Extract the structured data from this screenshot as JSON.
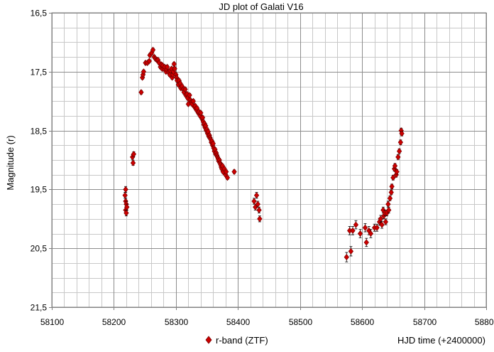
{
  "chart_data": {
    "type": "scatter",
    "title": "JD plot of Galati V16",
    "xlabel": "HJD time (+2400000)",
    "ylabel": "Magnitude (r)",
    "xlim": [
      58100,
      58800
    ],
    "ylim": [
      16.5,
      21.5
    ],
    "y_inverted": true,
    "x_major_ticks": [
      58100,
      58200,
      58300,
      58400,
      58500,
      58600,
      58700,
      58800
    ],
    "x_tick_labels": [
      "58100",
      "58200",
      "58300",
      "58400",
      "58500",
      "58600",
      "58700",
      "58800"
    ],
    "y_major_ticks": [
      16.5,
      17.5,
      18.5,
      19.5,
      20.5,
      21.5
    ],
    "y_tick_labels": [
      "16,5",
      "17,5",
      "18,5",
      "19,5",
      "20,5",
      "21,5"
    ],
    "x_minor_step": 20,
    "y_minor_step": 0.25,
    "grid": true,
    "legend_position": "bottom-center",
    "marker_color": "#cc0000",
    "marker_edge_color": "#7a0000",
    "series": [
      {
        "name": "r-band (ZTF)",
        "marker": "diamond",
        "points": [
          [
            58218,
            19.6,
            0.05
          ],
          [
            58219,
            19.5,
            0.05
          ],
          [
            58219,
            19.7,
            0.05
          ],
          [
            58220,
            19.75,
            0.05
          ],
          [
            58219,
            19.85,
            0.05
          ],
          [
            58220,
            19.9,
            0.05
          ],
          [
            58221,
            19.8,
            0.05
          ],
          [
            58230,
            18.95,
            0.04
          ],
          [
            58231,
            19.05,
            0.04
          ],
          [
            58232,
            18.9,
            0.04
          ],
          [
            58244,
            17.85,
            0.03
          ],
          [
            58246,
            17.6,
            0.03
          ],
          [
            58247,
            17.55,
            0.03
          ],
          [
            58248,
            17.5,
            0.03
          ],
          [
            58251,
            17.35,
            0.03
          ],
          [
            58254,
            17.35,
            0.03
          ],
          [
            58257,
            17.32,
            0.03
          ],
          [
            58258,
            17.22,
            0.03
          ],
          [
            58261,
            17.18,
            0.03
          ],
          [
            58263,
            17.13,
            0.03
          ],
          [
            58265,
            17.25,
            0.03
          ],
          [
            58267,
            17.28,
            0.03
          ],
          [
            58269,
            17.3,
            0.03
          ],
          [
            58271,
            17.3,
            0.03
          ],
          [
            58273,
            17.35,
            0.03
          ],
          [
            58275,
            17.42,
            0.03
          ],
          [
            58277,
            17.38,
            0.03
          ],
          [
            58278,
            17.45,
            0.03
          ],
          [
            58279,
            17.4,
            0.03
          ],
          [
            58281,
            17.45,
            0.03
          ],
          [
            58282,
            17.42,
            0.03
          ],
          [
            58284,
            17.5,
            0.03
          ],
          [
            58285,
            17.46,
            0.03
          ],
          [
            58286,
            17.42,
            0.03
          ],
          [
            58288,
            17.5,
            0.03
          ],
          [
            58289,
            17.52,
            0.03
          ],
          [
            58290,
            17.55,
            0.03
          ],
          [
            58291,
            17.48,
            0.03
          ],
          [
            58293,
            17.45,
            0.03
          ],
          [
            58294,
            17.6,
            0.03
          ],
          [
            58295,
            17.55,
            0.03
          ],
          [
            58296,
            17.5,
            0.03
          ],
          [
            58297,
            17.37,
            0.03
          ],
          [
            58298,
            17.45,
            0.03
          ],
          [
            58300,
            17.55,
            0.03
          ],
          [
            58301,
            17.6,
            0.03
          ],
          [
            58302,
            17.65,
            0.03
          ],
          [
            58304,
            17.72,
            0.03
          ],
          [
            58305,
            17.65,
            0.03
          ],
          [
            58307,
            17.7,
            0.03
          ],
          [
            58308,
            17.78,
            0.03
          ],
          [
            58310,
            17.75,
            0.03
          ],
          [
            58312,
            17.8,
            0.03
          ],
          [
            58313,
            17.85,
            0.03
          ],
          [
            58315,
            17.8,
            0.03
          ],
          [
            58316,
            17.9,
            0.03
          ],
          [
            58318,
            17.88,
            0.03
          ],
          [
            58319,
            17.95,
            0.03
          ],
          [
            58320,
            18.05,
            0.03
          ],
          [
            58322,
            17.9,
            0.03
          ],
          [
            58323,
            17.98,
            0.03
          ],
          [
            58325,
            18.02,
            0.03
          ],
          [
            58326,
            18.05,
            0.03
          ],
          [
            58328,
            18.0,
            0.03
          ],
          [
            58330,
            18.1,
            0.03
          ],
          [
            58331,
            18.08,
            0.03
          ],
          [
            58333,
            18.15,
            0.03
          ],
          [
            58334,
            18.12,
            0.03
          ],
          [
            58336,
            18.2,
            0.03
          ],
          [
            58337,
            18.18,
            0.03
          ],
          [
            58339,
            18.25,
            0.03
          ],
          [
            58340,
            18.2,
            0.03
          ],
          [
            58342,
            18.3,
            0.03
          ],
          [
            58343,
            18.28,
            0.03
          ],
          [
            58344,
            18.35,
            0.03
          ],
          [
            58345,
            18.4,
            0.03
          ],
          [
            58346,
            18.38,
            0.03
          ],
          [
            58347,
            18.45,
            0.03
          ],
          [
            58348,
            18.42,
            0.03
          ],
          [
            58349,
            18.5,
            0.03
          ],
          [
            58350,
            18.48,
            0.03
          ],
          [
            58351,
            18.55,
            0.03
          ],
          [
            58352,
            18.52,
            0.03
          ],
          [
            58353,
            18.6,
            0.03
          ],
          [
            58354,
            18.58,
            0.03
          ],
          [
            58355,
            18.62,
            0.03
          ],
          [
            58356,
            18.65,
            0.03
          ],
          [
            58357,
            18.7,
            0.03
          ],
          [
            58358,
            18.68,
            0.03
          ],
          [
            58359,
            18.75,
            0.03
          ],
          [
            58360,
            18.72,
            0.03
          ],
          [
            58361,
            18.8,
            0.03
          ],
          [
            58362,
            18.85,
            0.03
          ],
          [
            58363,
            18.82,
            0.03
          ],
          [
            58364,
            18.9,
            0.03
          ],
          [
            58365,
            18.88,
            0.03
          ],
          [
            58366,
            18.92,
            0.03
          ],
          [
            58367,
            18.95,
            0.03
          ],
          [
            58368,
            18.98,
            0.03
          ],
          [
            58369,
            19.02,
            0.03
          ],
          [
            58370,
            19.0,
            0.03
          ],
          [
            58371,
            19.05,
            0.03
          ],
          [
            58372,
            19.08,
            0.03
          ],
          [
            58373,
            19.12,
            0.03
          ],
          [
            58374,
            19.15,
            0.03
          ],
          [
            58375,
            19.1,
            0.03
          ],
          [
            58376,
            19.2,
            0.03
          ],
          [
            58378,
            19.15,
            0.03
          ],
          [
            58380,
            19.25,
            0.03
          ],
          [
            58381,
            19.2,
            0.03
          ],
          [
            58383,
            19.3,
            0.03
          ],
          [
            58394,
            19.2,
            0.03
          ],
          [
            58426,
            19.7,
            0.05
          ],
          [
            58428,
            19.8,
            0.05
          ],
          [
            58430,
            19.6,
            0.05
          ],
          [
            58432,
            19.75,
            0.05
          ],
          [
            58434,
            19.85,
            0.05
          ],
          [
            58435,
            20.0,
            0.05
          ],
          [
            58575,
            20.65,
            0.08
          ],
          [
            58580,
            20.2,
            0.07
          ],
          [
            58582,
            20.55,
            0.08
          ],
          [
            58585,
            20.2,
            0.07
          ],
          [
            58590,
            20.1,
            0.07
          ],
          [
            58597,
            20.25,
            0.07
          ],
          [
            58605,
            20.15,
            0.07
          ],
          [
            58607,
            20.4,
            0.07
          ],
          [
            58611,
            20.2,
            0.07
          ],
          [
            58614,
            20.25,
            0.07
          ],
          [
            58620,
            20.15,
            0.06
          ],
          [
            58624,
            20.15,
            0.06
          ],
          [
            58628,
            20.05,
            0.06
          ],
          [
            58630,
            20.0,
            0.06
          ],
          [
            58632,
            20.1,
            0.06
          ],
          [
            58634,
            19.85,
            0.05
          ],
          [
            58635,
            19.95,
            0.05
          ],
          [
            58637,
            19.9,
            0.05
          ],
          [
            58638,
            20.05,
            0.05
          ],
          [
            58640,
            19.9,
            0.05
          ],
          [
            58642,
            19.75,
            0.05
          ],
          [
            58643,
            19.85,
            0.05
          ],
          [
            58645,
            19.65,
            0.04
          ],
          [
            58647,
            19.55,
            0.04
          ],
          [
            58648,
            19.45,
            0.04
          ],
          [
            58650,
            19.3,
            0.04
          ],
          [
            58652,
            19.15,
            0.04
          ],
          [
            58653,
            19.1,
            0.04
          ],
          [
            58655,
            19.25,
            0.04
          ],
          [
            58656,
            19.2,
            0.04
          ],
          [
            58658,
            18.95,
            0.04
          ],
          [
            58660,
            18.85,
            0.04
          ],
          [
            58662,
            18.7,
            0.04
          ],
          [
            58663,
            18.5,
            0.04
          ],
          [
            58664,
            18.55,
            0.04
          ]
        ]
      }
    ]
  }
}
